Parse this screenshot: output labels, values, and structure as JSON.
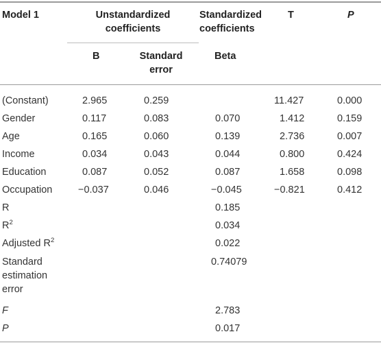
{
  "header": {
    "model": "Model 1",
    "unstd_line1": "Unstandardized",
    "unstd_line2": "coefficients",
    "std_line1": "Standardized",
    "std_line2": "coefficients",
    "t": "T",
    "p": "P",
    "b": "B",
    "se_line1": "Standard",
    "se_line2": "error",
    "beta": "Beta"
  },
  "rows": [
    {
      "label": "(Constant)",
      "b": "2.965",
      "se": "0.259",
      "beta": "",
      "t": "11.427",
      "p": "0.000"
    },
    {
      "label": "Gender",
      "b": "0.117",
      "se": "0.083",
      "beta": "0.070",
      "t": "1.412",
      "p": "0.159"
    },
    {
      "label": "Age",
      "b": "0.165",
      "se": "0.060",
      "beta": "0.139",
      "t": "2.736",
      "p": "0.007"
    },
    {
      "label": "Income",
      "b": "0.034",
      "se": "0.043",
      "beta": "0.044",
      "t": "0.800",
      "p": "0.424"
    },
    {
      "label": "Education",
      "b": "0.087",
      "se": "0.052",
      "beta": "0.087",
      "t": "1.658",
      "p": "0.098"
    },
    {
      "label": "Occupation",
      "b": "−0.037",
      "se": "0.046",
      "beta": "−0.045",
      "t": "−0.821",
      "p": "0.412"
    }
  ],
  "stats": {
    "r_label": "R",
    "r_value": "0.185",
    "r2_label_base": "R",
    "r2_label_sup": "2",
    "r2_value": "0.034",
    "adj_r2_label_base": "Adjusted R",
    "adj_r2_label_sup": "2",
    "adj_r2_value": "0.022",
    "see_line1": "Standard",
    "see_line2": "estimation",
    "see_line3": "error",
    "see_value": "0.74079",
    "f_label": "F",
    "f_value": "2.783",
    "p_label": "P",
    "p_value": "0.017"
  }
}
